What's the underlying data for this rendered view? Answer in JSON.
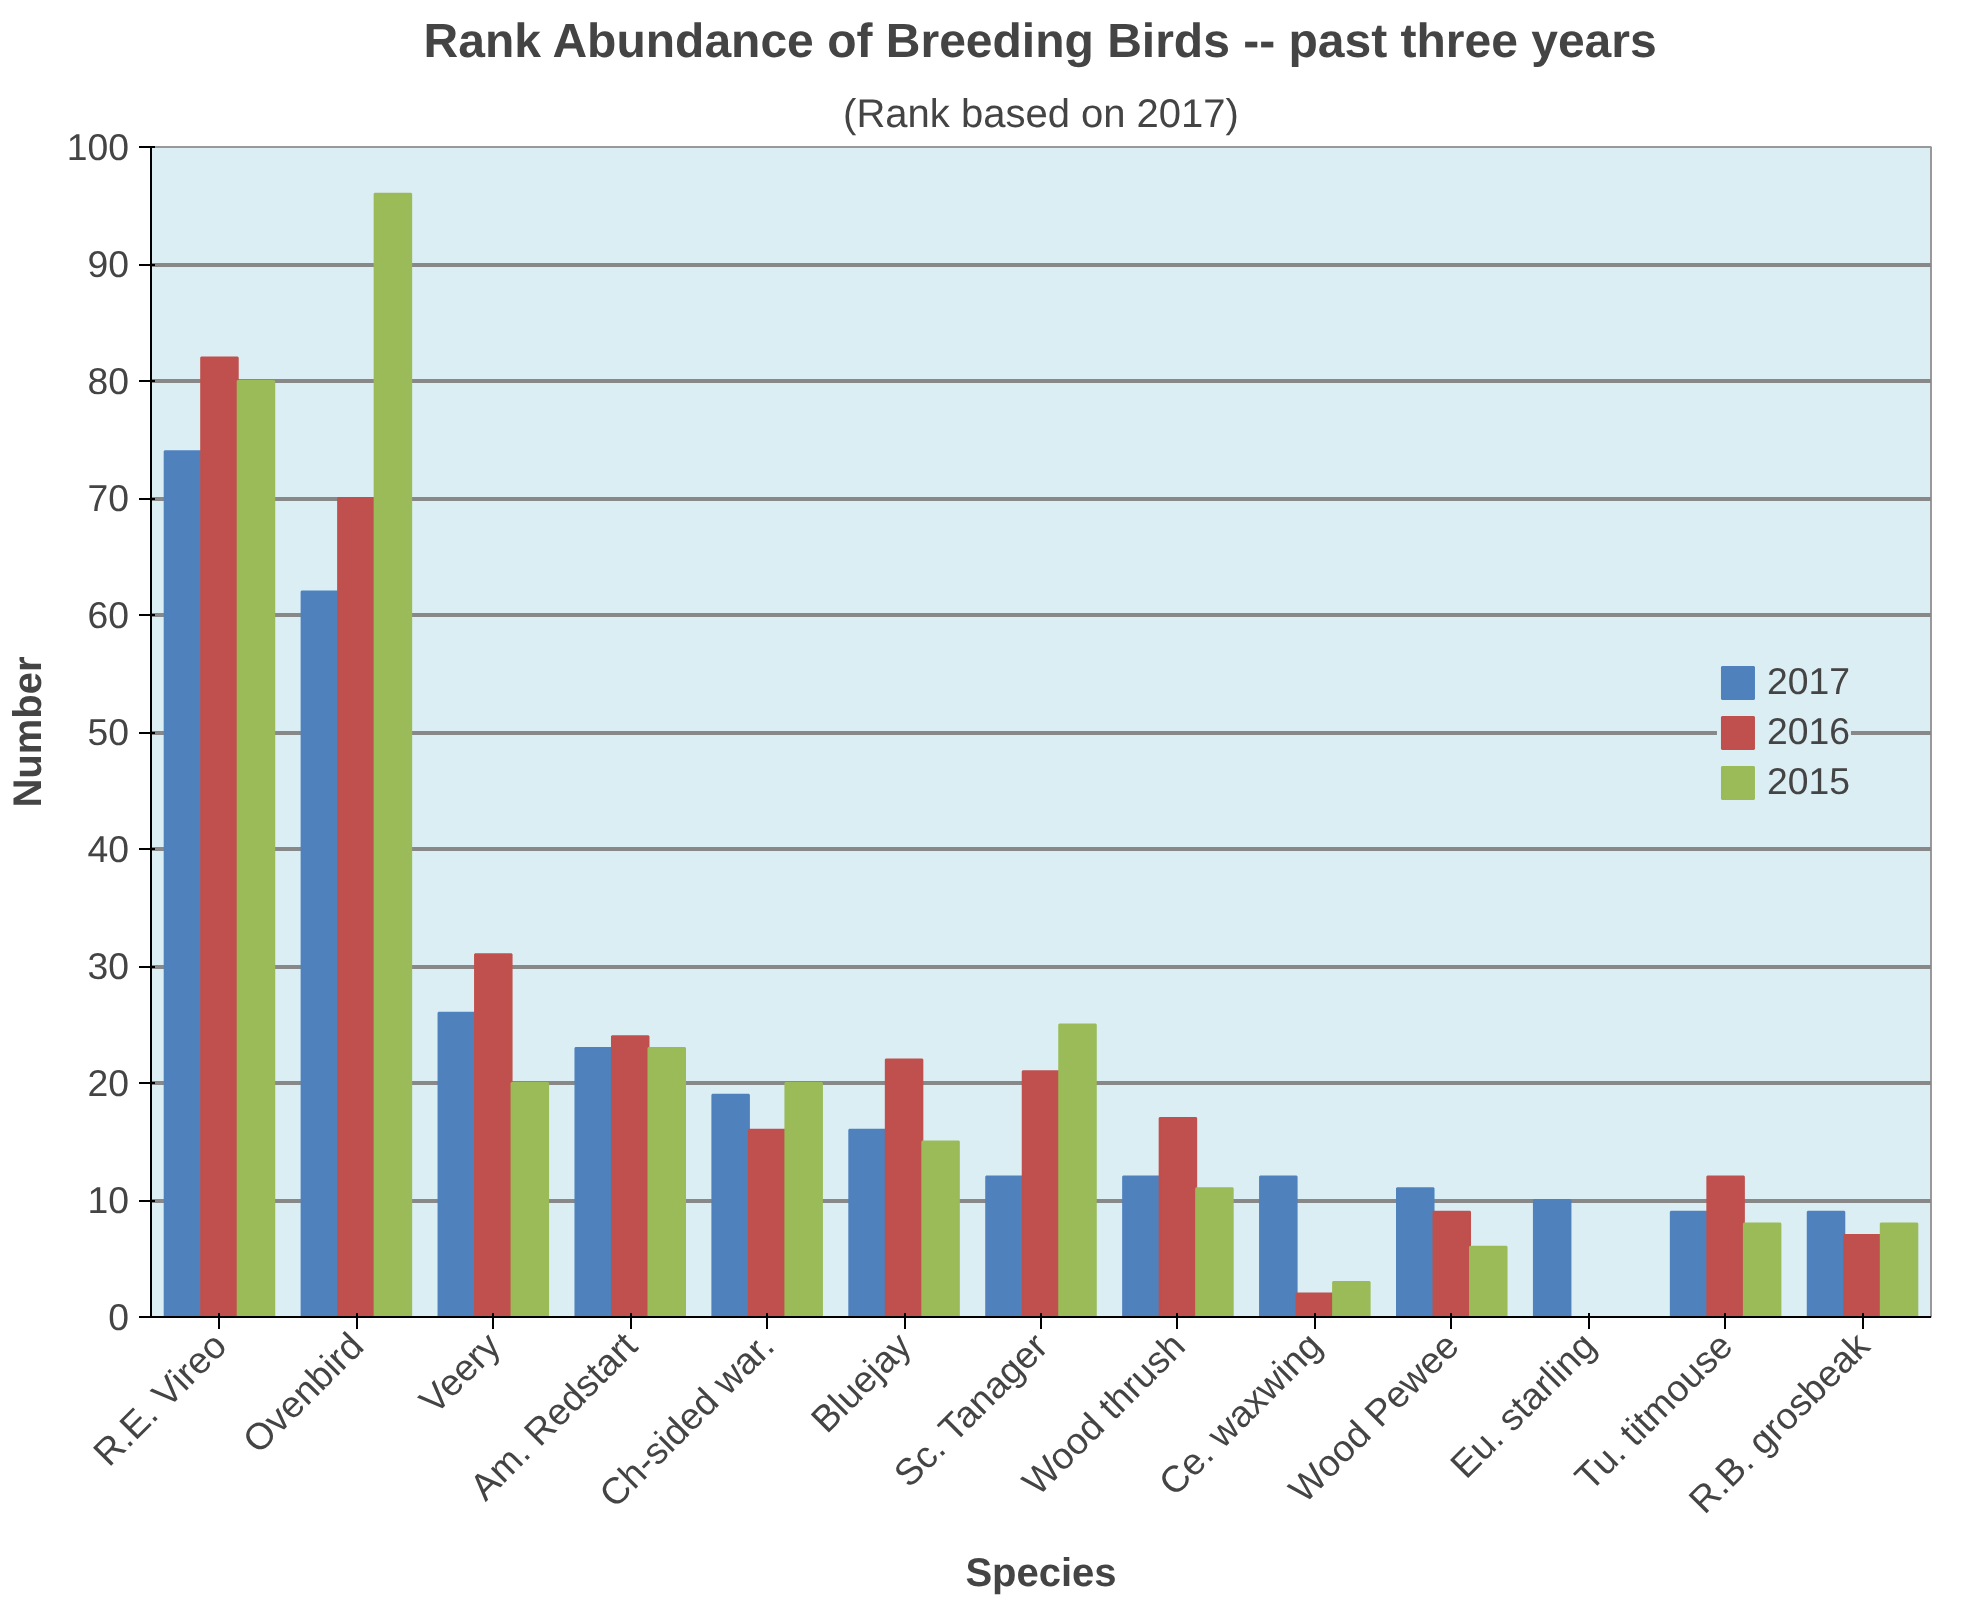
{
  "chart_data": {
    "type": "bar",
    "title": "Rank Abundance of Breeding Birds -- past three years",
    "subtitle": "(Rank based on 2017)",
    "xlabel": "Species",
    "ylabel": "Number",
    "categories": [
      "R.E. Vireo",
      "Ovenbird",
      "Veery",
      "Am. Redstart",
      "Ch-sided war.",
      "Bluejay",
      "Sc. Tanager",
      "Wood thrush",
      "Ce. waxwing",
      "Wood Pewee",
      "Eu. starling",
      "Tu. titmouse",
      "R.B. grosbeak"
    ],
    "series": [
      {
        "name": "2017",
        "color": "#4f81bd",
        "values": [
          74,
          62,
          26,
          23,
          19,
          16,
          12,
          12,
          12,
          11,
          10,
          9,
          9
        ]
      },
      {
        "name": "2016",
        "color": "#c0504d",
        "values": [
          82,
          70,
          31,
          24,
          16,
          22,
          21,
          17,
          2,
          9,
          0,
          12,
          7
        ]
      },
      {
        "name": "2015",
        "color": "#9bbb59",
        "values": [
          80,
          96,
          20,
          23,
          20,
          15,
          25,
          11,
          3,
          6,
          0,
          8,
          8
        ]
      }
    ],
    "ylim": [
      0,
      100
    ],
    "yticks": [
      0,
      10,
      20,
      30,
      40,
      50,
      60,
      70,
      80,
      90,
      100
    ],
    "grid": "y",
    "legend": "right"
  }
}
